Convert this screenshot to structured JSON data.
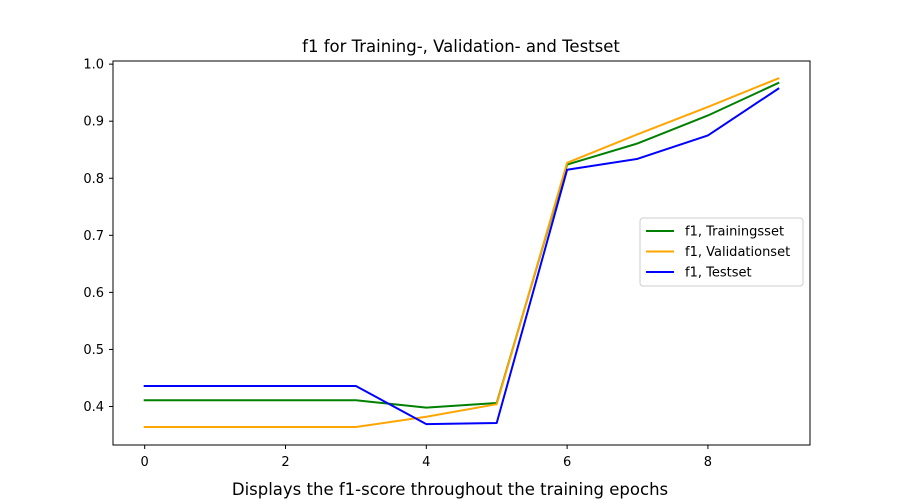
{
  "chart_data": {
    "type": "line",
    "title": "f1 for Training-, Validation- and Testset",
    "caption": "Displays the f1-score throughout the training epochs",
    "xlabel": "",
    "ylabel": "",
    "x": [
      0,
      1,
      2,
      3,
      4,
      5,
      6,
      7,
      8,
      9
    ],
    "xlim": [
      -0.45,
      9.45
    ],
    "ylim": [
      0.3325,
      1.0055
    ],
    "xticks": [
      0,
      2,
      4,
      6,
      8
    ],
    "yticks": [
      0.4,
      0.5,
      0.6,
      0.7,
      0.8,
      0.9,
      1.0
    ],
    "xtick_labels": [
      "0",
      "2",
      "4",
      "6",
      "8"
    ],
    "ytick_labels": [
      "0.4",
      "0.5",
      "0.6",
      "0.7",
      "0.8",
      "0.9",
      "1.0"
    ],
    "grid": false,
    "legend_position": "center-right",
    "series": [
      {
        "name": "f1, Trainingsset",
        "color": "#008000",
        "values": [
          0.411,
          0.411,
          0.411,
          0.411,
          0.398,
          0.406,
          0.824,
          0.861,
          0.91,
          0.967
        ]
      },
      {
        "name": "f1, Validationset",
        "color": "#FFA500",
        "values": [
          0.364,
          0.364,
          0.364,
          0.364,
          0.382,
          0.404,
          0.827,
          0.877,
          0.925,
          0.975
        ]
      },
      {
        "name": "f1, Testset",
        "color": "#0000FF",
        "values": [
          0.436,
          0.436,
          0.436,
          0.436,
          0.369,
          0.371,
          0.815,
          0.834,
          0.875,
          0.957
        ]
      }
    ]
  }
}
